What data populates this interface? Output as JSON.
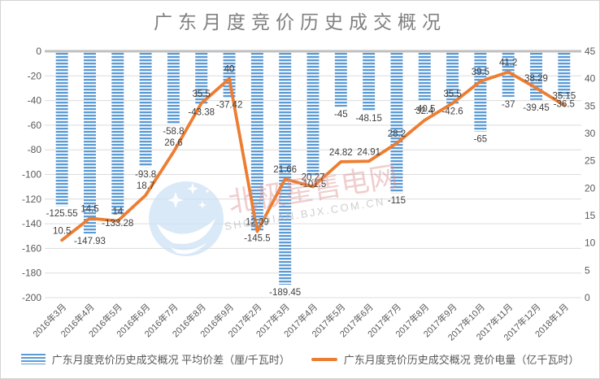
{
  "title": "广东月度竞价历史成交概况",
  "watermark": {
    "brand_text": "北极星售电网",
    "url_text": "SHOUDIAN.BJX.COM.CN"
  },
  "legend": {
    "bar_label": "广东月度竞价历史成交概况 平均价差（厘/千瓦时）",
    "line_label": "广东月度竞价历史成交概况 竞价电量（亿千瓦时）"
  },
  "chart_data": {
    "type": "bar",
    "subtype": "bar-line combo, dual axis",
    "title": "广东月度竞价历史成交概况",
    "grid": true,
    "legend_position": "bottom",
    "categories": [
      "2016年3月",
      "2016年4月",
      "2016年5月",
      "2016年6月",
      "2016年7月",
      "2016年8月",
      "2016年9月",
      "2017年2月",
      "2017年3月",
      "2017年4月",
      "2017年5月",
      "2017年6月",
      "2017年7月",
      "2017年8月",
      "2017年9月",
      "2017年10月",
      "2017年11月",
      "2017年12月",
      "2018年1月"
    ],
    "series": [
      {
        "name": "广东月度竞价历史成交概况 平均价差（厘/千瓦时）",
        "type": "bar",
        "axis": "left",
        "color": "#5B9BD5",
        "values": [
          -125.55,
          -147.93,
          -133.28,
          -93.8,
          -58.8,
          -43.38,
          -37.42,
          -145.5,
          -189.45,
          -101.5,
          -45,
          -48.15,
          -115,
          -40.5,
          -42.6,
          -65,
          -37,
          -39.45,
          -36.5
        ]
      },
      {
        "name": "广东月度竞价历史成交概况 竞价电量（亿千瓦时）",
        "type": "line",
        "axis": "right",
        "color": "#ED7D31",
        "values": [
          10.5,
          14.5,
          14,
          18.7,
          26.6,
          35.5,
          40,
          12.09,
          21.66,
          20.27,
          24.82,
          24.91,
          28.2,
          32.4,
          35.5,
          39.5,
          41.2,
          38.29,
          35.15
        ]
      }
    ],
    "left_axis": {
      "min": -200,
      "max": 0,
      "step": 20,
      "ticks": [
        "0",
        "-20",
        "-40",
        "-60",
        "-80",
        "-100",
        "-120",
        "-140",
        "-160",
        "-180",
        "-200"
      ]
    },
    "right_axis": {
      "min": 0,
      "max": 45,
      "step": 5,
      "ticks": [
        "45",
        "40",
        "35",
        "30",
        "25",
        "20",
        "15",
        "10",
        "5",
        "0"
      ]
    }
  }
}
